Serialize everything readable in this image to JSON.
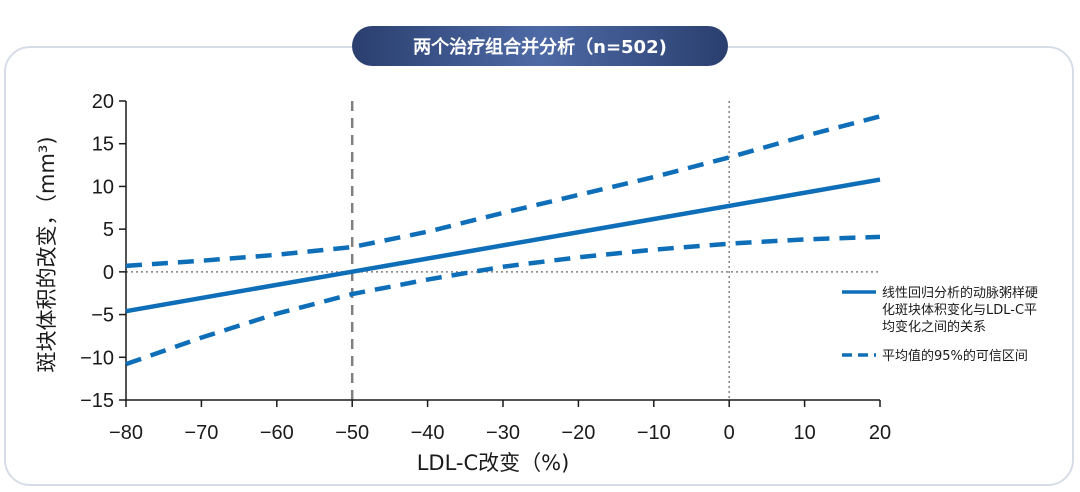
{
  "title": "两个治疗组合并分析（n=502)",
  "chart_data": {
    "type": "line",
    "xlabel": "LDL-C改变（%)",
    "ylabel": "斑块体积的改变，（mm³)",
    "xlim": [
      -80,
      20
    ],
    "ylim": [
      -15,
      20
    ],
    "x_ticks": [
      -80,
      -70,
      -60,
      -50,
      -40,
      -30,
      -20,
      -10,
      0,
      10,
      20
    ],
    "y_ticks": [
      20,
      15,
      10,
      5,
      0,
      -5,
      -10,
      -15
    ],
    "x_tick_labels": [
      "−80",
      "−70",
      "−60",
      "−50",
      "−40",
      "−30",
      "−20",
      "−10",
      "0",
      "10",
      "20"
    ],
    "y_tick_labels": [
      "20",
      "15",
      "10",
      "5",
      "0",
      "−5",
      "−10",
      "−15"
    ],
    "reference_lines": [
      {
        "axis": "x",
        "value": -50,
        "style": "dashed",
        "color": "#808080"
      },
      {
        "axis": "x",
        "value": 0,
        "style": "dotted",
        "color": "#808080"
      },
      {
        "axis": "y",
        "value": 0,
        "style": "dotted",
        "color": "#808080"
      }
    ],
    "series": [
      {
        "name": "线性回归分析的动脉粥样硬化斑块体积变化与LDL-C平均变化之间的关系",
        "style": "solid",
        "color": "#0e6eb8",
        "x": [
          -80,
          20
        ],
        "y": [
          -4.6,
          10.8
        ]
      },
      {
        "name": "平均值的95%的可信区间",
        "style": "dashed",
        "color": "#0e6eb8",
        "x": [
          -80,
          -70,
          -60,
          -50,
          -40,
          -30,
          -20,
          -10,
          0,
          10,
          20
        ],
        "y": [
          0.7,
          1.3,
          2.0,
          2.9,
          4.7,
          6.9,
          9.0,
          11.1,
          13.4,
          15.9,
          18.2
        ]
      },
      {
        "name": "",
        "style": "dashed",
        "color": "#0e6eb8",
        "x": [
          -80,
          -70,
          -60,
          -50,
          -40,
          -30,
          -20,
          -10,
          0,
          10,
          20
        ],
        "y": [
          -10.8,
          -7.7,
          -4.9,
          -2.6,
          -0.9,
          0.6,
          1.7,
          2.6,
          3.3,
          3.8,
          4.1
        ]
      }
    ],
    "legend": {
      "position": "right",
      "entries": [
        {
          "lines": [
            "线性回归分析的动脉粥样硬",
            "化斑块体积变化与LDL-C平",
            "均变化之间的关系"
          ],
          "style": "solid"
        },
        {
          "lines": [
            "平均值的95%的可信区间"
          ],
          "style": "dashed"
        }
      ]
    },
    "grid": false
  }
}
